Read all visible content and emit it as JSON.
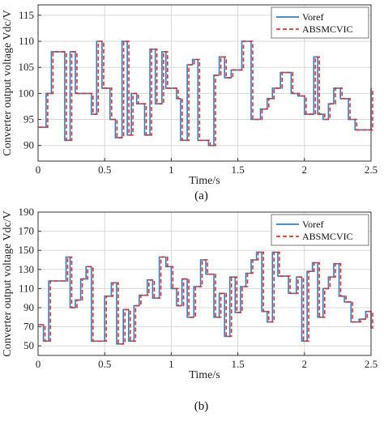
{
  "colors": {
    "voref": "#2f7fc1",
    "absmcvic": "#e5302f",
    "grid": "#d8d8d8",
    "axis": "#333333"
  },
  "chart_data": [
    {
      "type": "line",
      "caption": "(a)",
      "xlabel": "Time/s",
      "ylabel": "Converter output voltage Vdc/V",
      "xlim": [
        0,
        2.5
      ],
      "ylim": [
        87,
        117
      ],
      "xticks": [
        "0",
        "0.5",
        "1",
        "1.5",
        "2",
        "2.5"
      ],
      "xtick_values": [
        0,
        0.5,
        1,
        1.5,
        2,
        2.5
      ],
      "yticks": [
        "90",
        "95",
        "100",
        "105",
        "110",
        "115"
      ],
      "ytick_values": [
        90,
        95,
        100,
        105,
        110,
        115
      ],
      "grid": true,
      "legend_position": "top-right",
      "series": [
        {
          "name": "Voref",
          "style": "solid",
          "x": [
            0,
            0.03,
            0.06,
            0.1,
            0.16,
            0.2,
            0.24,
            0.28,
            0.36,
            0.4,
            0.44,
            0.48,
            0.54,
            0.58,
            0.63,
            0.67,
            0.7,
            0.74,
            0.8,
            0.84,
            0.88,
            0.93,
            0.96,
            1.0,
            1.04,
            1.07,
            1.12,
            1.16,
            1.2,
            1.28,
            1.32,
            1.36,
            1.4,
            1.45,
            1.49,
            1.53,
            1.6,
            1.67,
            1.72,
            1.76,
            1.82,
            1.9,
            1.95,
            2.0,
            2.03,
            2.07,
            2.1,
            2.14,
            2.18,
            2.22,
            2.27,
            2.33,
            2.38,
            2.44,
            2.5
          ],
          "y": [
            93.5,
            93.5,
            100,
            108,
            108,
            91,
            108,
            100,
            100,
            96,
            110,
            101,
            95,
            91.5,
            110,
            92,
            100,
            98,
            92,
            108.5,
            98,
            108,
            101,
            101,
            99,
            91,
            105.5,
            106.5,
            91,
            90,
            103.5,
            107,
            103,
            104.5,
            104.5,
            110,
            95,
            97,
            99,
            101,
            104,
            100,
            99.5,
            96,
            96,
            107,
            96,
            95,
            98,
            101,
            99,
            95,
            93,
            93,
            101
          ]
        },
        {
          "name": "ABSMCVIC",
          "style": "dashed",
          "x": [
            0,
            0.03,
            0.06,
            0.1,
            0.16,
            0.2,
            0.24,
            0.28,
            0.36,
            0.4,
            0.44,
            0.48,
            0.54,
            0.58,
            0.63,
            0.67,
            0.7,
            0.74,
            0.8,
            0.84,
            0.88,
            0.93,
            0.96,
            1.0,
            1.04,
            1.07,
            1.12,
            1.16,
            1.2,
            1.28,
            1.32,
            1.36,
            1.4,
            1.45,
            1.49,
            1.53,
            1.6,
            1.67,
            1.72,
            1.76,
            1.82,
            1.9,
            1.95,
            2.0,
            2.03,
            2.07,
            2.1,
            2.14,
            2.18,
            2.22,
            2.27,
            2.33,
            2.38,
            2.44,
            2.5
          ],
          "y": [
            93.5,
            93.5,
            100,
            108,
            108,
            91,
            108,
            100,
            100,
            96,
            110,
            101,
            95,
            91.5,
            110,
            92,
            100,
            98,
            92,
            108.5,
            98,
            108,
            101,
            101,
            99,
            91,
            105.5,
            106.5,
            91,
            90,
            103.5,
            107,
            103,
            104.5,
            104.5,
            110,
            95,
            97,
            99,
            101,
            104,
            100,
            99.5,
            96,
            96,
            107,
            96,
            95,
            98,
            101,
            99,
            95,
            93,
            93,
            101
          ]
        }
      ]
    },
    {
      "type": "line",
      "caption": "(b)",
      "xlabel": "Time/s",
      "ylabel": "Converter output voltage Vdc/V",
      "xlim": [
        0,
        2.5
      ],
      "ylim": [
        40,
        190
      ],
      "xticks": [
        "0",
        "0.5",
        "1",
        "1.5",
        "2",
        "2.5"
      ],
      "xtick_values": [
        0,
        0.5,
        1,
        1.5,
        2,
        2.5
      ],
      "yticks": [
        "50",
        "70",
        "90",
        "110",
        "130",
        "150",
        "170",
        "190"
      ],
      "ytick_values": [
        50,
        70,
        90,
        110,
        130,
        150,
        170,
        190
      ],
      "grid": true,
      "legend_position": "top-right",
      "series": [
        {
          "name": "Voref",
          "style": "solid",
          "x": [
            0,
            0.04,
            0.08,
            0.16,
            0.21,
            0.24,
            0.28,
            0.32,
            0.36,
            0.4,
            0.46,
            0.5,
            0.55,
            0.59,
            0.64,
            0.68,
            0.72,
            0.76,
            0.82,
            0.86,
            0.91,
            0.96,
            1.0,
            1.04,
            1.08,
            1.12,
            1.17,
            1.22,
            1.26,
            1.32,
            1.36,
            1.4,
            1.44,
            1.48,
            1.52,
            1.56,
            1.6,
            1.64,
            1.68,
            1.72,
            1.76,
            1.8,
            1.84,
            1.88,
            1.94,
            1.98,
            2.02,
            2.06,
            2.1,
            2.14,
            2.18,
            2.22,
            2.26,
            2.3,
            2.35,
            2.41,
            2.46,
            2.5
          ],
          "y": [
            72,
            55,
            118,
            118,
            143,
            90,
            98,
            120,
            133,
            55,
            55,
            102,
            116,
            52,
            88,
            55,
            92,
            103,
            119,
            100,
            143,
            133,
            110,
            92,
            120,
            80,
            112,
            140,
            125,
            80,
            105,
            60,
            122,
            85,
            112,
            126,
            140,
            148,
            86,
            75,
            148,
            123,
            123,
            105,
            122,
            55,
            128,
            137,
            80,
            110,
            122,
            136,
            102,
            96,
            75,
            78,
            86,
            68
          ]
        },
        {
          "name": "ABSMCVIC",
          "style": "dashed",
          "x": [
            0,
            0.04,
            0.08,
            0.16,
            0.21,
            0.24,
            0.28,
            0.32,
            0.36,
            0.4,
            0.46,
            0.5,
            0.55,
            0.59,
            0.64,
            0.68,
            0.72,
            0.76,
            0.82,
            0.86,
            0.91,
            0.96,
            1.0,
            1.04,
            1.08,
            1.12,
            1.17,
            1.22,
            1.26,
            1.32,
            1.36,
            1.4,
            1.44,
            1.48,
            1.52,
            1.56,
            1.6,
            1.64,
            1.68,
            1.72,
            1.76,
            1.8,
            1.84,
            1.88,
            1.94,
            1.98,
            2.02,
            2.06,
            2.1,
            2.14,
            2.18,
            2.22,
            2.26,
            2.3,
            2.35,
            2.41,
            2.46,
            2.5
          ],
          "y": [
            72,
            55,
            118,
            118,
            143,
            90,
            98,
            120,
            133,
            55,
            55,
            102,
            116,
            52,
            88,
            55,
            92,
            103,
            119,
            100,
            143,
            133,
            110,
            92,
            120,
            80,
            112,
            140,
            125,
            80,
            105,
            60,
            122,
            85,
            112,
            126,
            140,
            148,
            86,
            75,
            148,
            123,
            123,
            105,
            122,
            55,
            128,
            137,
            80,
            110,
            122,
            136,
            102,
            96,
            75,
            78,
            86,
            68
          ]
        }
      ]
    }
  ]
}
